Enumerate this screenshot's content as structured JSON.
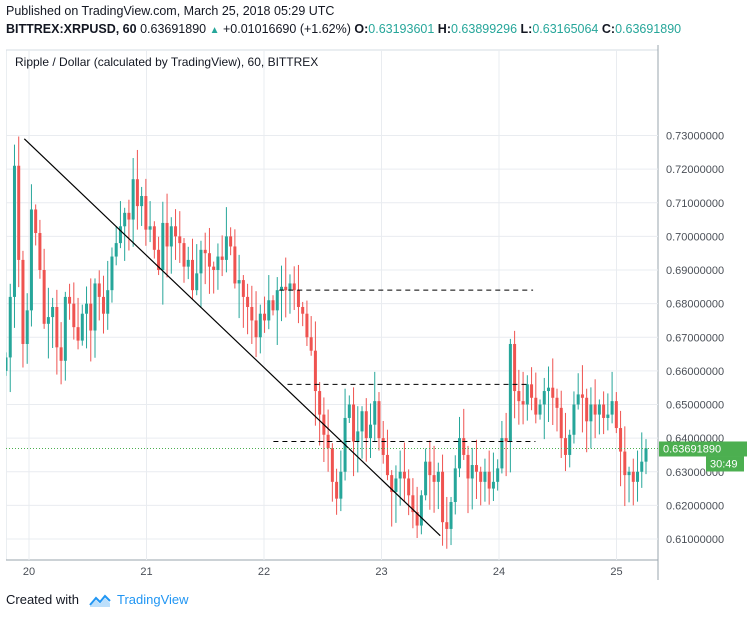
{
  "header": {
    "published": "Published on TradingView.com, March 25, 2018 05:29 UTC",
    "symbol": "BITTREX:XRPUSD, 60",
    "last": "0.63691890",
    "change": "+0.01016690 (+1.62%)",
    "o_label": "O:",
    "o_value": "0.63193601",
    "h_label": "H:",
    "h_value": "0.63899296",
    "l_label": "L:",
    "l_value": "0.63165064",
    "c_label": "C:",
    "c_value": "0.63691890"
  },
  "colors": {
    "up": "#26a69a",
    "down": "#ef5350",
    "grid": "#e9ecf0",
    "price_tag": "#4caf50",
    "time_tag": "#4caf50",
    "brand": "#2196f3"
  },
  "footer": {
    "created_with": "Created with",
    "brand": "TradingView"
  },
  "price_tag": {
    "value": "0.63691890",
    "countdown": "30:49"
  },
  "chart_data": {
    "type": "candlestick",
    "title": "Ripple / Dollar (calculated by TradingView), 60, BITTREX",
    "ylim": [
      0.605,
      0.735
    ],
    "xlim": [
      20.0,
      25.36
    ],
    "y_ticks": [
      "0.61000000",
      "0.62000000",
      "0.63000000",
      "0.64000000",
      "0.65000000",
      "0.66000000",
      "0.67000000",
      "0.68000000",
      "0.69000000",
      "0.70000000",
      "0.71000000",
      "0.72000000",
      "0.73000000"
    ],
    "x_ticks": [
      {
        "label": "20",
        "value": 20
      },
      {
        "label": "21",
        "value": 21
      },
      {
        "label": "22",
        "value": 22
      },
      {
        "label": "23",
        "value": 23
      },
      {
        "label": "24",
        "value": 24
      },
      {
        "label": "25",
        "value": 25
      }
    ],
    "last_price": 0.6369189,
    "trendline": {
      "from": [
        19.96,
        0.729
      ],
      "to": [
        23.5,
        0.611
      ]
    },
    "levels": [
      {
        "price": 0.684,
        "x_from": 22.13,
        "x_to": 24.29
      },
      {
        "price": 0.656,
        "x_from": 22.2,
        "x_to": 24.24
      },
      {
        "price": 0.639,
        "x_from": 22.08,
        "x_to": 24.31
      }
    ],
    "closes": [
      0.664,
      0.682,
      0.721,
      0.693,
      0.668,
      0.678,
      0.708,
      0.701,
      0.69,
      0.674,
      0.676,
      0.679,
      0.667,
      0.663,
      0.682,
      0.68,
      0.673,
      0.669,
      0.677,
      0.68,
      0.672,
      0.686,
      0.682,
      0.677,
      0.684,
      0.694,
      0.698,
      0.703,
      0.707,
      0.705,
      0.717,
      0.709,
      0.712,
      0.702,
      0.703,
      0.696,
      0.69,
      0.704,
      0.697,
      0.703,
      0.7,
      0.698,
      0.691,
      0.693,
      0.684,
      0.689,
      0.696,
      0.695,
      0.691,
      0.69,
      0.694,
      0.693,
      0.7,
      0.697,
      0.686,
      0.687,
      0.682,
      0.679,
      0.675,
      0.67,
      0.677,
      0.675,
      0.681,
      0.678,
      0.684,
      0.685,
      0.684,
      0.686,
      0.684,
      0.679,
      0.677,
      0.67,
      0.666,
      0.654,
      0.647,
      0.641,
      0.637,
      0.627,
      0.622,
      0.63,
      0.646,
      0.65,
      0.639,
      0.642,
      0.648,
      0.64,
      0.644,
      0.651,
      0.64,
      0.635,
      0.629,
      0.624,
      0.628,
      0.63,
      0.628,
      0.623,
      0.618,
      0.614,
      0.623,
      0.633,
      0.629,
      0.627,
      0.63,
      0.615,
      0.613,
      0.621,
      0.631,
      0.64,
      0.635,
      0.628,
      0.632,
      0.63,
      0.627,
      0.63,
      0.625,
      0.627,
      0.631,
      0.64,
      0.639,
      0.668,
      0.654,
      0.651,
      0.65,
      0.656,
      0.652,
      0.647,
      0.65,
      0.654,
      0.655,
      0.652,
      0.649,
      0.64,
      0.635,
      0.641,
      0.65,
      0.653,
      0.652,
      0.645,
      0.65,
      0.647,
      0.65,
      0.646,
      0.647,
      0.651,
      0.643,
      0.636,
      0.629,
      0.63,
      0.627,
      0.63,
      0.633,
      0.637
    ]
  }
}
